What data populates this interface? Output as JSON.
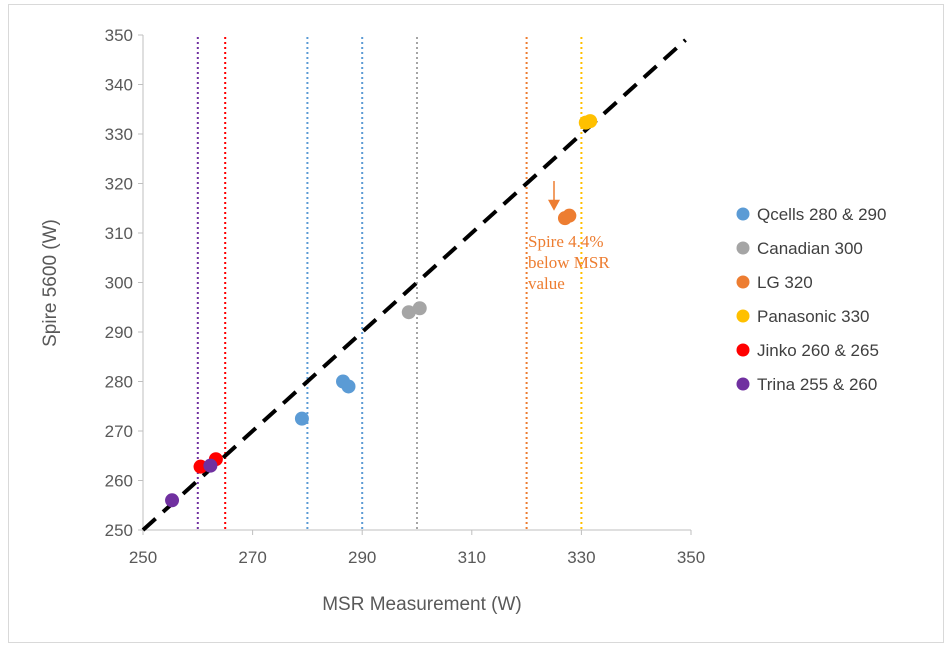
{
  "chart_data": {
    "type": "scatter",
    "title": "",
    "xlabel": "MSR Measurement (W)",
    "ylabel": "Spire 5600 (W)",
    "xlim": [
      250,
      350
    ],
    "ylim": [
      250,
      350
    ],
    "xticks": [
      "250",
      "270",
      "290",
      "310",
      "330",
      "350"
    ],
    "yticks": [
      "250",
      "260",
      "270",
      "280",
      "290",
      "300",
      "310",
      "320",
      "330",
      "340",
      "350"
    ],
    "grid": false,
    "legend_position": "right",
    "series": [
      {
        "name": "Qcells 280 & 290",
        "color": "#5B9BD5",
        "points": [
          [
            279,
            272.5
          ],
          [
            286.5,
            280
          ],
          [
            287.5,
            279
          ]
        ]
      },
      {
        "name": "Canadian 300",
        "color": "#A5A5A5",
        "points": [
          [
            298.5,
            294
          ],
          [
            300.5,
            294.8
          ]
        ]
      },
      {
        "name": "LG 320",
        "color": "#ED7D31",
        "points": [
          [
            327,
            313
          ],
          [
            327.8,
            313.5
          ]
        ]
      },
      {
        "name": "Panasonic 330",
        "color": "#FFC000",
        "points": [
          [
            330.8,
            332.3
          ],
          [
            331.6,
            332.6
          ]
        ]
      },
      {
        "name": "Jinko 260 & 265",
        "color": "#FF0000",
        "points": [
          [
            260.5,
            262.8
          ],
          [
            263.3,
            264.3
          ]
        ]
      },
      {
        "name": "Trina 255 & 260",
        "color": "#7030A0",
        "points": [
          [
            255.3,
            256
          ],
          [
            262.3,
            263
          ]
        ]
      }
    ],
    "reference_line": {
      "style": "dashed",
      "color": "#000000",
      "from": [
        250,
        250
      ],
      "to": [
        349,
        349
      ]
    },
    "vertical_lines": [
      {
        "x": 260,
        "color": "#7030A0"
      },
      {
        "x": 265,
        "color": "#FF0000"
      },
      {
        "x": 280,
        "color": "#5B9BD5"
      },
      {
        "x": 290,
        "color": "#5B9BD5"
      },
      {
        "x": 300,
        "color": "#A5A5A5"
      },
      {
        "x": 320,
        "color": "#ED7D31"
      },
      {
        "x": 330,
        "color": "#FFC000"
      }
    ],
    "annotation": {
      "lines": [
        "Spire 4.4%",
        "below MSR",
        "value"
      ],
      "color": "#ED7D31",
      "arrow_from": [
        325,
        320.5
      ],
      "arrow_to": [
        325,
        314.5
      ]
    }
  }
}
